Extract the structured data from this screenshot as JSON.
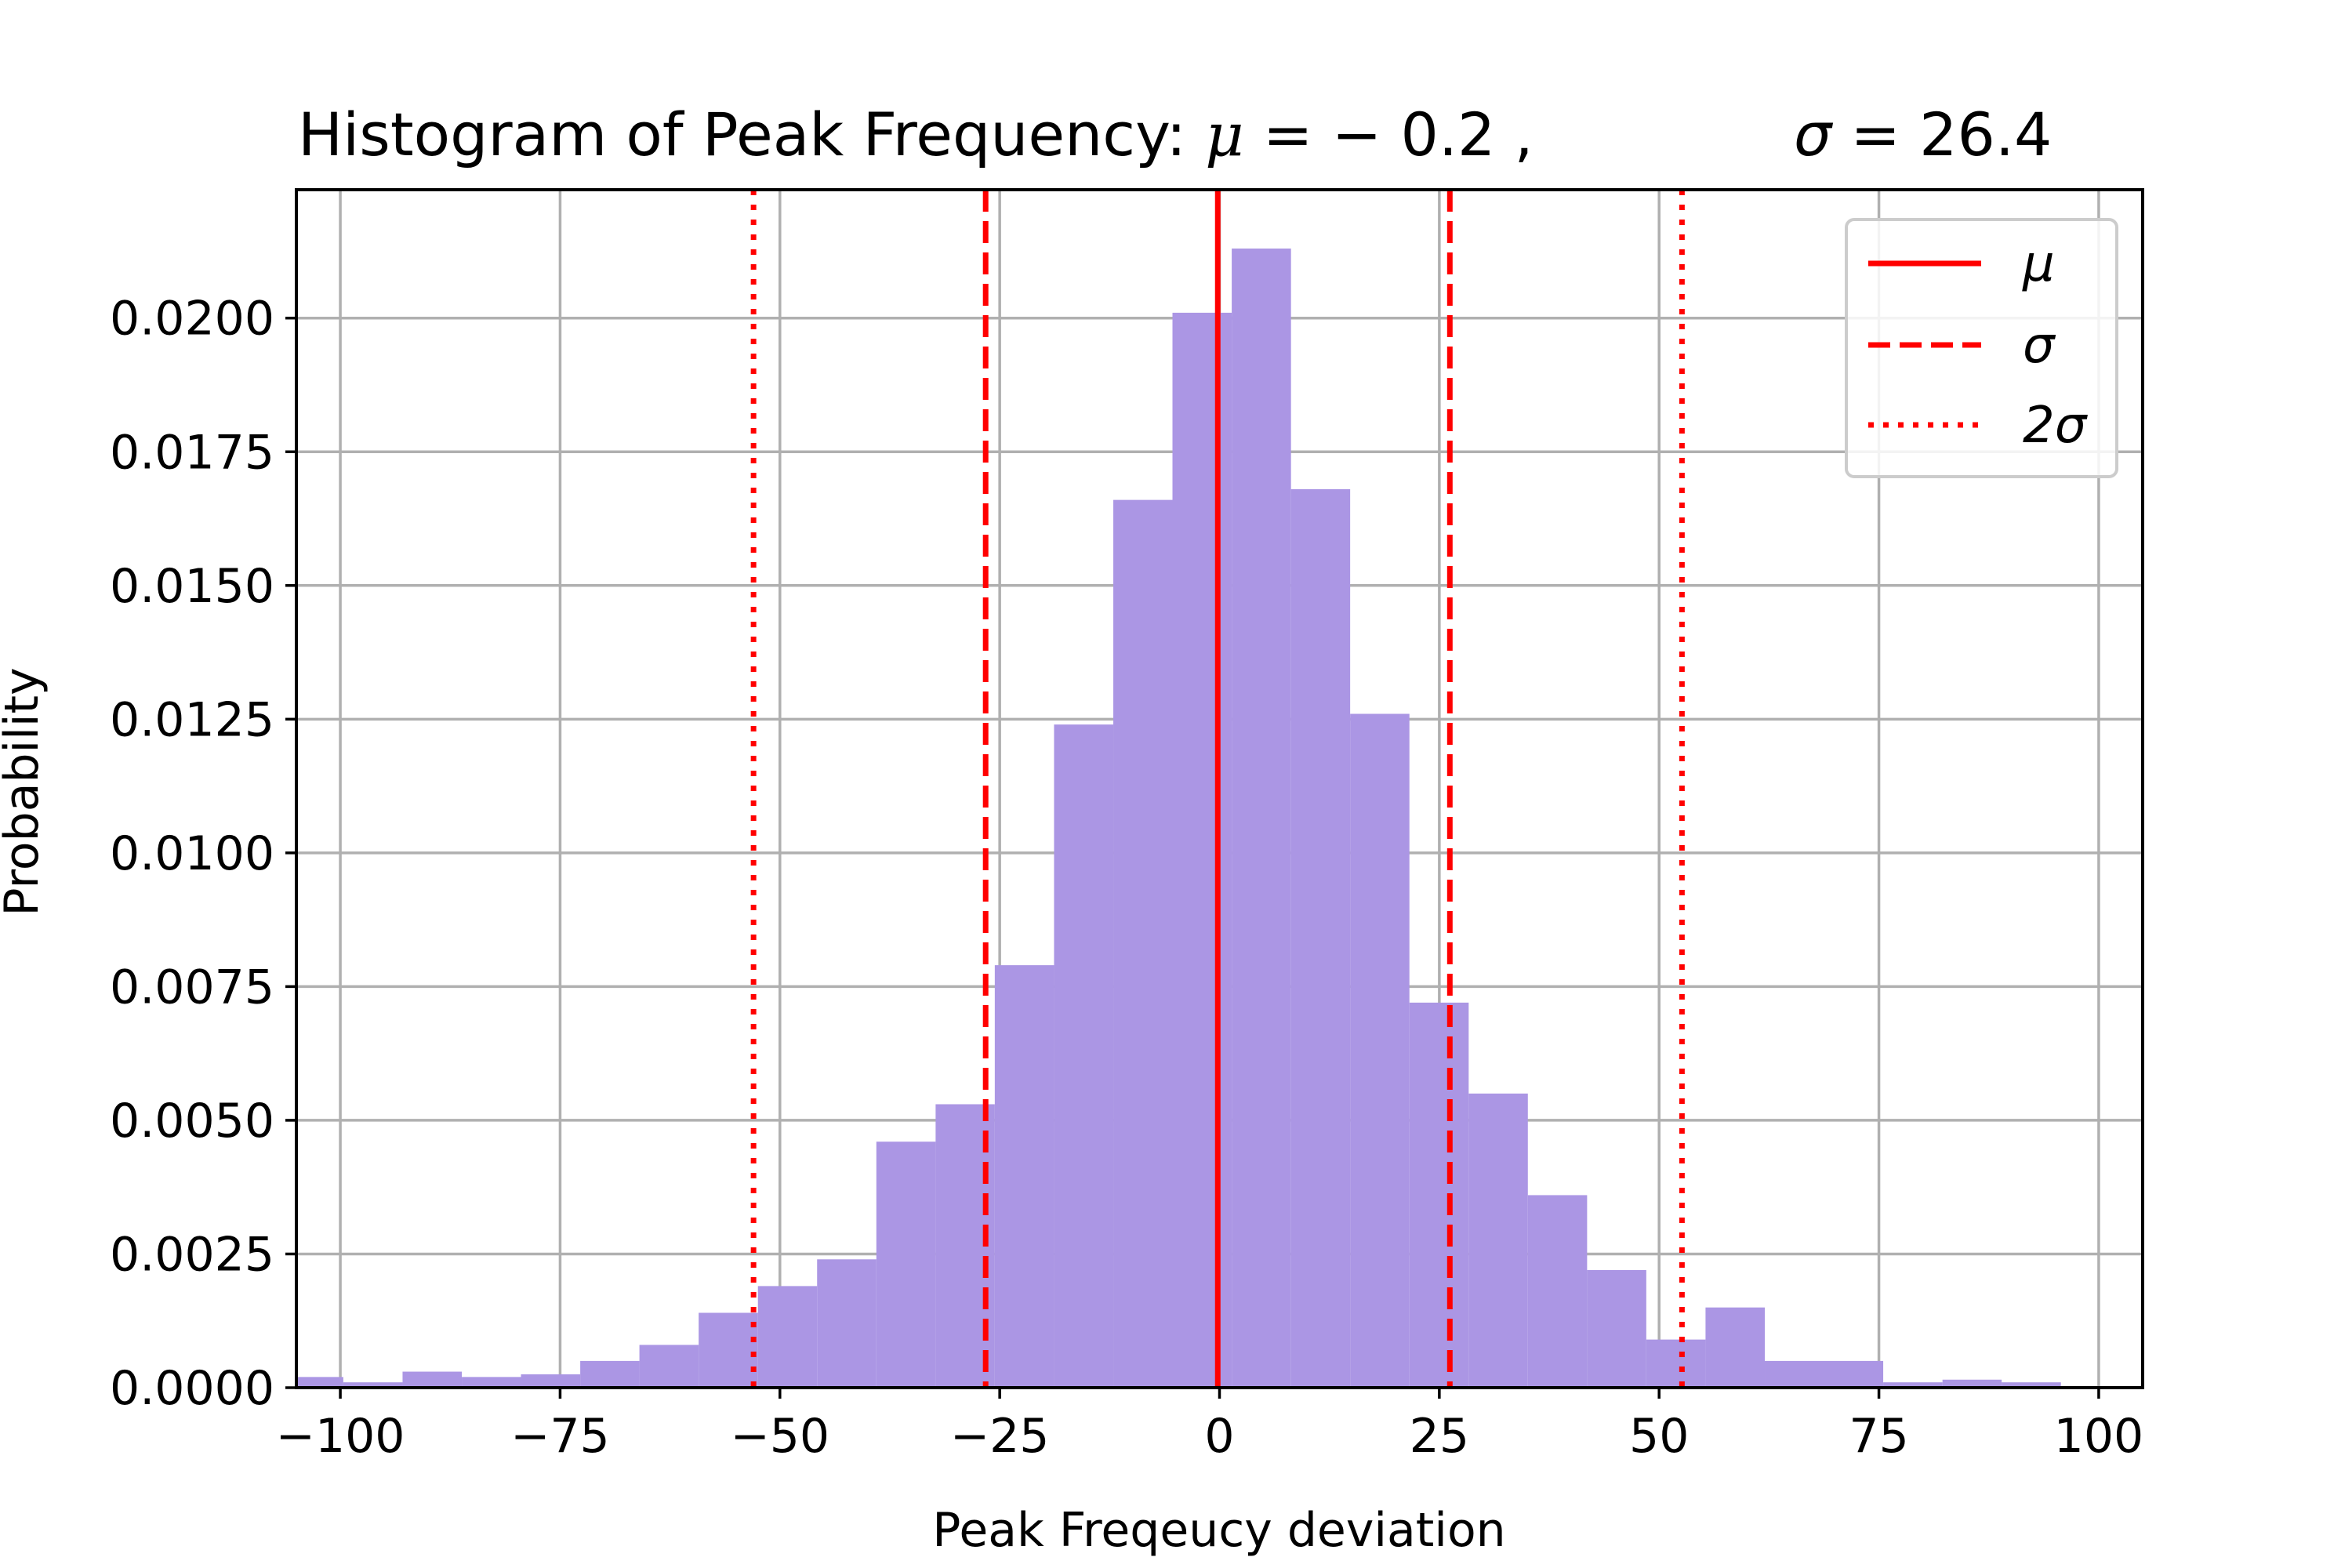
{
  "chart_data": {
    "type": "bar",
    "title": "Histogram of Peak Frequency",
    "title_mu_symbol": "μ",
    "title_mu_text": " = − 0.2 ,",
    "title_sigma_symbol": "σ",
    "title_sigma_text": " = 26.4",
    "mu": -0.2,
    "sigma": 26.4,
    "xlabel": "Peak Freqeucy deviation",
    "ylabel": "Probability",
    "xlim": [
      -105,
      105
    ],
    "ylim": [
      0,
      0.0224
    ],
    "grid": true,
    "bar_color": "#ab96e4",
    "line_color": "#ff0000",
    "bin_edges": [
      -106.3,
      -99.66,
      -92.92,
      -86.18,
      -79.45,
      -72.71,
      -65.98,
      -59.24,
      -52.5,
      -45.77,
      -39.03,
      -32.29,
      -25.56,
      -18.82,
      -12.08,
      -5.35,
      1.39,
      8.13,
      14.86,
      21.6,
      28.34,
      35.07,
      41.81,
      48.54,
      55.28,
      62.02,
      68.75,
      75.49,
      82.23,
      88.96,
      95.7
    ],
    "values": [
      0.0002,
      0.0001,
      0.0003,
      0.0002,
      0.00025,
      0.0005,
      0.0008,
      0.0014,
      0.0019,
      0.0024,
      0.0046,
      0.0053,
      0.0079,
      0.0124,
      0.0166,
      0.0201,
      0.0213,
      0.0168,
      0.0126,
      0.0072,
      0.0055,
      0.0036,
      0.0022,
      0.0009,
      0.0015,
      0.0005,
      0.0005,
      0.0001,
      0.00015,
      0.0001
    ],
    "xticks": [
      -100,
      -75,
      -50,
      -25,
      0,
      25,
      50,
      75,
      100
    ],
    "xtick_labels": [
      "−100",
      "−75",
      "−50",
      "−25",
      "0",
      "25",
      "50",
      "75",
      "100"
    ],
    "yticks": [
      0,
      0.0025,
      0.005,
      0.0075,
      0.01,
      0.0125,
      0.015,
      0.0175,
      0.02
    ],
    "ytick_labels": [
      "0.0000",
      "0.0025",
      "0.0050",
      "0.0075",
      "0.0100",
      "0.0125",
      "0.0150",
      "0.0175",
      "0.0200"
    ],
    "vlines": [
      {
        "x": -0.2,
        "style": "solid"
      },
      {
        "x": -26.6,
        "style": "dashed"
      },
      {
        "x": 26.2,
        "style": "dashed"
      },
      {
        "x": -53.0,
        "style": "dotted"
      },
      {
        "x": 52.6,
        "style": "dotted"
      }
    ],
    "legend": {
      "location": "top-right",
      "entries": [
        {
          "label": "μ",
          "style": "solid"
        },
        {
          "label": "σ",
          "style": "dashed"
        },
        {
          "label": "2σ",
          "style": "dotted"
        }
      ]
    }
  }
}
